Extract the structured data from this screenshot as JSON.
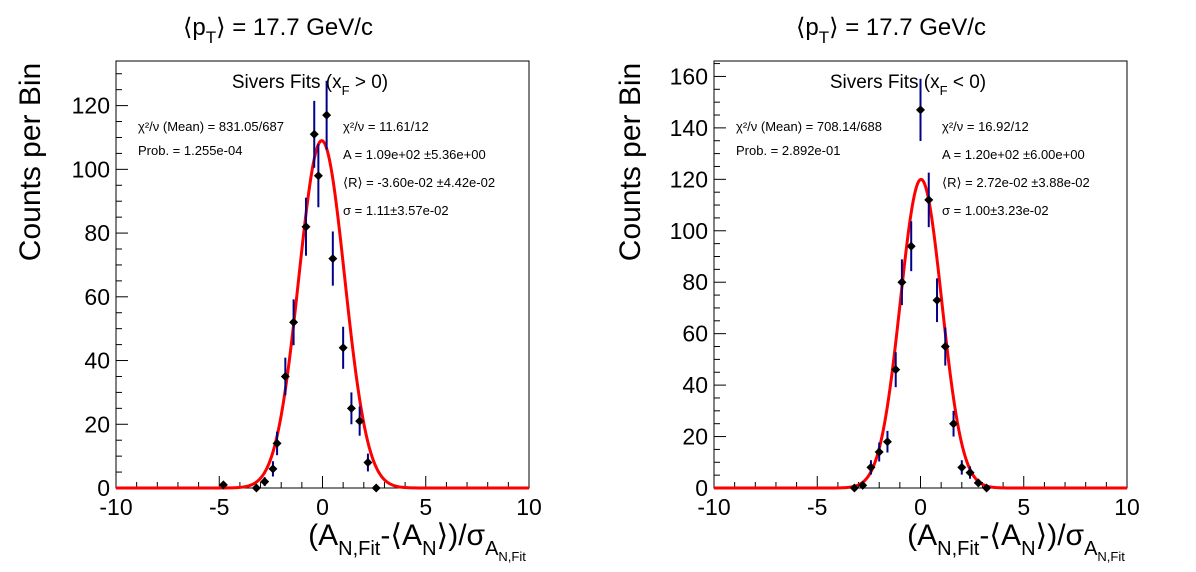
{
  "chart_data": [
    {
      "type": "scatter",
      "title_main": "⟨p",
      "title_sub": "T",
      "title_tail": "⟩ = 17.7 GeV/c",
      "ylabel": "Counts per Bin",
      "xlabel_main": "(A",
      "xlabel_sub1": "N,Fit",
      "xlabel_mid": "-⟨A",
      "xlabel_sub2": "N",
      "xlabel_tail": "⟩)/σ",
      "xlabel_sub3": "A",
      "xlabel_subsub": "N,Fit",
      "legend_head": "Sivers Fits (x",
      "legend_sub": "F",
      "legend_tail": " > 0)",
      "stats_left": [
        "χ²/ν (Mean) = 831.05/687",
        "Prob. = 1.255e-04"
      ],
      "stats_right": [
        "χ²/ν = 11.61/12",
        "A = 1.09e+02  ±5.36e+00",
        "⟨R⟩ = -3.60e-02 ±4.42e-02",
        "σ = 1.11±3.57e-02"
      ],
      "xlim": [
        -10,
        10
      ],
      "ylim": [
        0,
        134
      ],
      "xticks": [
        -10,
        -5,
        0,
        5,
        10
      ],
      "yticks": [
        0,
        20,
        40,
        60,
        80,
        100,
        120
      ],
      "x": [
        -4.8,
        -3.2,
        -2.8,
        -2.4,
        -2.2,
        -1.8,
        -1.4,
        -0.8,
        -0.4,
        -0.2,
        0.2,
        0.5,
        1.0,
        1.4,
        1.8,
        2.2,
        2.6
      ],
      "y": [
        1,
        0,
        2,
        6,
        14,
        35,
        52,
        82,
        111,
        98,
        117,
        72,
        44,
        25,
        21,
        8,
        0
      ],
      "yerr": [
        1,
        0,
        1.4,
        2.4,
        3.7,
        5.9,
        7.2,
        9.1,
        10.5,
        9.9,
        10.8,
        8.5,
        6.6,
        5,
        4.6,
        2.8,
        0
      ],
      "fit": {
        "A": 109,
        "mean": -0.036,
        "sigma": 1.11
      },
      "colors": {
        "marker": "#000000",
        "errorbar": "#00008b",
        "fit": "#ff0000"
      }
    },
    {
      "type": "scatter",
      "title_main": "⟨p",
      "title_sub": "T",
      "title_tail": "⟩ = 17.7 GeV/c",
      "ylabel": "Counts per Bin",
      "xlabel_main": "(A",
      "xlabel_sub1": "N,Fit",
      "xlabel_mid": "-⟨A",
      "xlabel_sub2": "N",
      "xlabel_tail": "⟩)/σ",
      "xlabel_sub3": "A",
      "xlabel_subsub": "N,Fit",
      "legend_head": "Sivers Fits (x",
      "legend_sub": "F",
      "legend_tail": " < 0)",
      "stats_left": [
        "χ²/ν (Mean) = 708.14/688",
        "Prob. = 2.892e-01"
      ],
      "stats_right": [
        "χ²/ν = 16.92/12",
        "A = 1.20e+02  ±6.00e+00",
        "⟨R⟩ = 2.72e-02 ±3.88e-02",
        "σ = 1.00±3.23e-02"
      ],
      "xlim": [
        -10,
        10
      ],
      "ylim": [
        0,
        166
      ],
      "xticks": [
        -10,
        -5,
        0,
        5,
        10
      ],
      "yticks": [
        0,
        20,
        40,
        60,
        80,
        100,
        120,
        140,
        160
      ],
      "x": [
        -3.2,
        -2.8,
        -2.4,
        -2.0,
        -1.6,
        -1.2,
        -0.9,
        -0.45,
        0.0,
        0.4,
        0.8,
        1.2,
        1.6,
        2.0,
        2.4,
        2.8,
        3.2
      ],
      "y": [
        0,
        1,
        8,
        14,
        18,
        46,
        80,
        94,
        147,
        112,
        73,
        55,
        25,
        8,
        6,
        2,
        0
      ],
      "yerr": [
        0,
        1,
        2.8,
        3.7,
        4.2,
        6.8,
        8.9,
        9.7,
        12.1,
        10.6,
        8.5,
        7.4,
        5,
        2.8,
        2.4,
        1.4,
        0
      ],
      "fit": {
        "A": 120,
        "mean": 0.0272,
        "sigma": 1.0
      },
      "colors": {
        "marker": "#000000",
        "errorbar": "#00008b",
        "fit": "#ff0000"
      }
    }
  ]
}
